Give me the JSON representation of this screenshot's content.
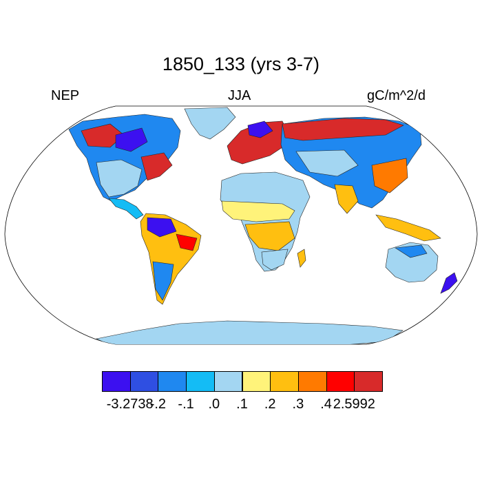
{
  "title": "1850_133 (yrs 3-7)",
  "left_label": "NEP",
  "center_label": "JJA",
  "right_label": "gC/m^2/d",
  "colorbar": {
    "colors": [
      "#3c10f0",
      "#2f4fe2",
      "#1f88f0",
      "#14bcf5",
      "#a3d6f2",
      "#fff37a",
      "#ffbf10",
      "#ff7a00",
      "#ff0000",
      "#d82a2a"
    ],
    "labels": [
      "-3.2738",
      "-.2",
      "-.1",
      ".0",
      ".1",
      ".2",
      ".3",
      ".4",
      "2.5992"
    ]
  }
}
